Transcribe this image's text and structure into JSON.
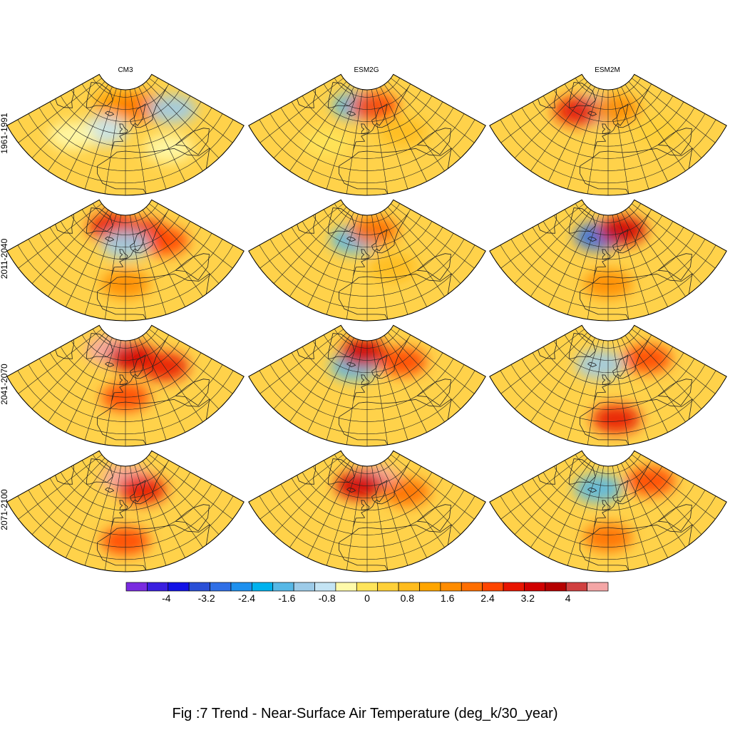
{
  "figure": {
    "caption": "Fig :7  Trend  - Near-Surface Air Temperature (deg_k/30_year)",
    "columns": [
      "CM3",
      "ESM2G",
      "ESM2M"
    ],
    "rows": [
      "1961-1991",
      "2011-2040",
      "2041-2070",
      "2071-2100"
    ]
  },
  "colorbar": {
    "tick_labels": [
      "-4",
      "-3.2",
      "-2.4",
      "-1.6",
      "-0.8",
      "0",
      "0.8",
      "1.6",
      "2.4",
      "3.2",
      "4"
    ],
    "tick_values": [
      -4,
      -3.2,
      -2.4,
      -1.6,
      -0.8,
      0,
      0.8,
      1.6,
      2.4,
      3.2,
      4
    ],
    "levels_min": -4.8,
    "levels_max": 4.8,
    "level_step": 0.4,
    "colors": [
      "#7a2be0",
      "#3a1fe0",
      "#1212e6",
      "#2a4fd6",
      "#2f6fe6",
      "#1e90ee",
      "#00b2ee",
      "#57b8e6",
      "#9dcbe8",
      "#c4e4f4",
      "#fffaaa",
      "#ffe45a",
      "#ffd038",
      "#ffbc1e",
      "#ffa500",
      "#ff8c00",
      "#ff6e00",
      "#ff4500",
      "#e81400",
      "#d00000",
      "#b50000",
      "#d04040",
      "#f4a6a6"
    ]
  },
  "map_style": {
    "base_color": "#ffd24a",
    "land_outline_color": "#222222",
    "grid_color": "#222222"
  },
  "panels": [
    {
      "row": 0,
      "col": 0,
      "mean_level": "0.4 to 0.8",
      "features": [
        {
          "lon": -10,
          "lat": 74,
          "kind": "warm",
          "color": "#ff9a00"
        },
        {
          "lon": 20,
          "lat": 70,
          "kind": "warm",
          "color": "#ff7a00"
        },
        {
          "lon": -20,
          "lat": 50,
          "kind": "cool",
          "color": "#c4e4f4"
        },
        {
          "lon": 50,
          "lat": 55,
          "kind": "cool",
          "color": "#9dcbe8"
        },
        {
          "lon": -40,
          "lat": 35,
          "kind": "neutral",
          "color": "#fffaaa"
        },
        {
          "lon": 30,
          "lat": 30,
          "kind": "neutral",
          "color": "#fffaaa"
        }
      ]
    },
    {
      "row": 0,
      "col": 1,
      "mean_level": "0.8 to 1.2",
      "features": [
        {
          "lon": -15,
          "lat": 72,
          "kind": "cool",
          "color": "#57b8e6"
        },
        {
          "lon": 10,
          "lat": 72,
          "kind": "warm",
          "color": "#ff4500"
        },
        {
          "lon": 30,
          "lat": 45,
          "kind": "warm",
          "color": "#ffbc1e"
        },
        {
          "lon": -30,
          "lat": 35,
          "kind": "neutral",
          "color": "#ffe45a"
        }
      ]
    },
    {
      "row": 0,
      "col": 2,
      "mean_level": "0.4 to 0.8",
      "features": [
        {
          "lon": -20,
          "lat": 68,
          "kind": "cool",
          "color": "#9dcbe8"
        },
        {
          "lon": -35,
          "lat": 62,
          "kind": "warm",
          "color": "#e81400"
        },
        {
          "lon": 10,
          "lat": 70,
          "kind": "warm",
          "color": "#ff8c00"
        },
        {
          "lon": 40,
          "lat": 40,
          "kind": "warm",
          "color": "#ffd038"
        }
      ]
    },
    {
      "row": 1,
      "col": 0,
      "mean_level": "1.6 to 2.0",
      "features": [
        {
          "lon": -20,
          "lat": 75,
          "kind": "warm",
          "color": "#e81400"
        },
        {
          "lon": 25,
          "lat": 68,
          "kind": "warm",
          "color": "#e81400"
        },
        {
          "lon": 40,
          "lat": 55,
          "kind": "warm",
          "color": "#ff4500"
        },
        {
          "lon": 0,
          "lat": 62,
          "kind": "cool",
          "color": "#9dcbe8"
        },
        {
          "lon": 0,
          "lat": 30,
          "kind": "warm",
          "color": "#ff8c00"
        }
      ]
    },
    {
      "row": 1,
      "col": 1,
      "mean_level": "0.8 to 1.2",
      "features": [
        {
          "lon": -15,
          "lat": 65,
          "kind": "cool",
          "color": "#57b8e6"
        },
        {
          "lon": 10,
          "lat": 73,
          "kind": "warm",
          "color": "#ff6e00"
        },
        {
          "lon": 20,
          "lat": 40,
          "kind": "warm",
          "color": "#ffbc1e"
        }
      ]
    },
    {
      "row": 1,
      "col": 2,
      "mean_level": "1.2 to 1.6",
      "features": [
        {
          "lon": -12,
          "lat": 68,
          "kind": "cool",
          "color": "#2f6fe6"
        },
        {
          "lon": 20,
          "lat": 72,
          "kind": "warm",
          "color": "#d00000"
        },
        {
          "lon": 0,
          "lat": 30,
          "kind": "warm",
          "color": "#ff8c00"
        }
      ]
    },
    {
      "row": 2,
      "col": 0,
      "mean_level": "2.0 to 2.4",
      "features": [
        {
          "lon": -25,
          "lat": 76,
          "kind": "warm",
          "color": "#f4a6a6"
        },
        {
          "lon": 10,
          "lat": 72,
          "kind": "warm",
          "color": "#d00000"
        },
        {
          "lon": 40,
          "lat": 55,
          "kind": "warm",
          "color": "#e81400"
        },
        {
          "lon": 0,
          "lat": 40,
          "kind": "warm",
          "color": "#ff4500"
        }
      ]
    },
    {
      "row": 2,
      "col": 1,
      "mean_level": "1.6 to 2.0",
      "features": [
        {
          "lon": -15,
          "lat": 64,
          "kind": "cool",
          "color": "#57b8e6"
        },
        {
          "lon": -5,
          "lat": 76,
          "kind": "warm",
          "color": "#d00000"
        },
        {
          "lon": 40,
          "lat": 60,
          "kind": "warm",
          "color": "#ff4500"
        }
      ]
    },
    {
      "row": 2,
      "col": 2,
      "mean_level": "1.6 to 2.0",
      "features": [
        {
          "lon": -10,
          "lat": 66,
          "kind": "cool",
          "color": "#9dcbe8"
        },
        {
          "lon": 5,
          "lat": 22,
          "kind": "warm",
          "color": "#e81400"
        },
        {
          "lon": 45,
          "lat": 60,
          "kind": "warm",
          "color": "#ff4500"
        }
      ]
    },
    {
      "row": 3,
      "col": 0,
      "mean_level": "2.0 to 2.4",
      "features": [
        {
          "lon": 0,
          "lat": 76,
          "kind": "warm",
          "color": "#f4a6a6"
        },
        {
          "lon": 20,
          "lat": 65,
          "kind": "warm",
          "color": "#e81400"
        },
        {
          "lon": 0,
          "lat": 25,
          "kind": "warm",
          "color": "#ff4500"
        }
      ]
    },
    {
      "row": 3,
      "col": 1,
      "mean_level": "1.6 to 2.0",
      "features": [
        {
          "lon": 10,
          "lat": 75,
          "kind": "warm",
          "color": "#f4a6a6"
        },
        {
          "lon": -10,
          "lat": 70,
          "kind": "warm",
          "color": "#d00000"
        },
        {
          "lon": 40,
          "lat": 55,
          "kind": "warm",
          "color": "#ff6e00"
        }
      ]
    },
    {
      "row": 3,
      "col": 2,
      "mean_level": "1.6 to 2.0",
      "features": [
        {
          "lon": -12,
          "lat": 67,
          "kind": "cool",
          "color": "#57b8e6"
        },
        {
          "lon": 50,
          "lat": 60,
          "kind": "warm",
          "color": "#ff4500"
        },
        {
          "lon": 0,
          "lat": 28,
          "kind": "warm",
          "color": "#ff6e00"
        }
      ]
    }
  ]
}
